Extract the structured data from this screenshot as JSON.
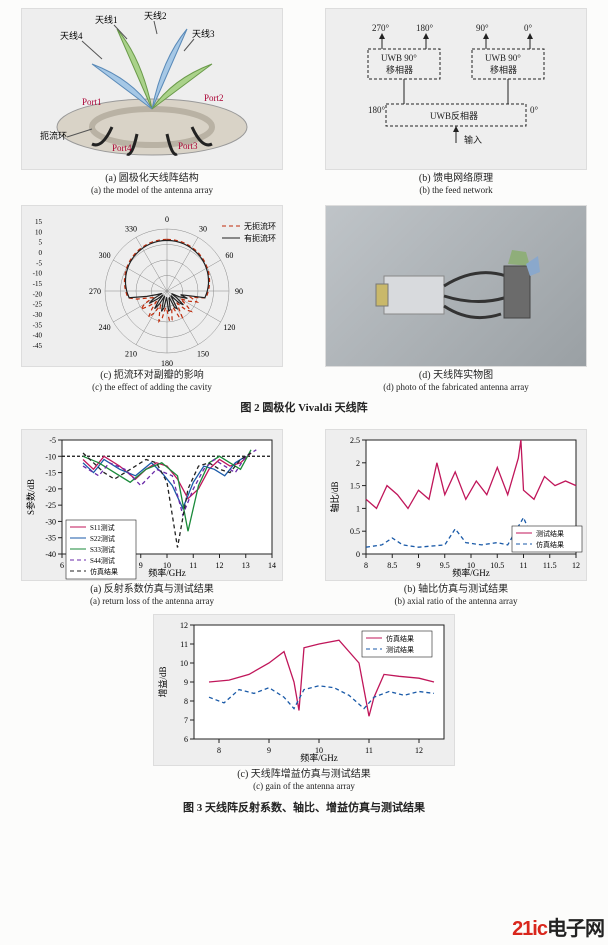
{
  "fig2": {
    "title": "图 2  圆极化 Vivaldi 天线阵",
    "a": {
      "cn": "(a) 圆极化天线阵结构",
      "en": "(a) the model of the antenna array",
      "labels": [
        "天线1",
        "天线2",
        "天线3",
        "天线4",
        "Port1",
        "Port2",
        "Port3",
        "Port4",
        "扼流环"
      ],
      "colors": {
        "vivaldi1": "#aad28a",
        "vivaldi2": "#a6c8e6",
        "base": "#d9d3c7",
        "ring": "#b9b2a4",
        "cable": "#222"
      }
    },
    "b": {
      "cn": "(b) 馈电网络原理",
      "en": "(b) the feed network",
      "angles_top": [
        "270°",
        "180°",
        "90°",
        "0°"
      ],
      "box_top_left": "UWB 90°\n移相器",
      "box_top_right": "UWB 90°\n移相器",
      "box_bottom": "UWB反相器",
      "side_left": "180°",
      "side_right": "0°",
      "input": "输入"
    },
    "c": {
      "cn": "(c) 扼流环对副瓣的影响",
      "en": "(c) the effect of adding the cavity",
      "radial_ticks": [
        15,
        10,
        5,
        0,
        -5,
        -10,
        -15,
        -20,
        -25,
        -30,
        -35,
        -40,
        -45
      ],
      "angle_ticks": [
        0,
        30,
        60,
        90,
        120,
        150,
        180,
        210,
        240,
        270,
        300,
        330
      ],
      "legend": [
        "无扼流环",
        "有扼流环"
      ],
      "line_color_no": "#c02a0a",
      "line_color_yes": "#222",
      "grid_color": "#888"
    },
    "d": {
      "cn": "(d) 天线阵实物图",
      "en": "(d) photo of the fabricated antenna array"
    }
  },
  "fig3": {
    "title": "图 3  天线阵反射系数、轴比、增益仿真与测试结果",
    "a": {
      "cn": "(a) 反射系数仿真与测试结果",
      "en": "(a) return loss of the antenna array",
      "ylabel": "S参数/dB",
      "xlabel": "频率/GHz",
      "xlim": [
        6,
        14
      ],
      "xticks": [
        6,
        7,
        8,
        9,
        10,
        11,
        12,
        13,
        14
      ],
      "ylim": [
        -40,
        -5
      ],
      "yticks": [
        -40,
        -35,
        -30,
        -25,
        -20,
        -15,
        -10,
        -5
      ],
      "legend": [
        "S11测试",
        "S22测试",
        "S33测试",
        "S44测试",
        "仿真结果"
      ],
      "legend_colors": [
        "#c0165a",
        "#1a5aa8",
        "#1a8a3a",
        "#6a2aa8",
        "#222"
      ],
      "series": {
        "S11": [
          [
            6.8,
            -11
          ],
          [
            7.2,
            -14
          ],
          [
            7.6,
            -10
          ],
          [
            8.2,
            -13
          ],
          [
            8.8,
            -17
          ],
          [
            9.2,
            -14
          ],
          [
            9.6,
            -12
          ],
          [
            10.0,
            -13
          ],
          [
            10.4,
            -17
          ],
          [
            10.8,
            -23
          ],
          [
            11.2,
            -20
          ],
          [
            11.6,
            -14
          ],
          [
            12.0,
            -11
          ],
          [
            12.4,
            -13
          ],
          [
            12.8,
            -12
          ],
          [
            13.2,
            -9
          ]
        ],
        "S22": [
          [
            6.8,
            -12
          ],
          [
            7.2,
            -15
          ],
          [
            7.6,
            -11
          ],
          [
            8.2,
            -14
          ],
          [
            8.8,
            -16
          ],
          [
            9.4,
            -12
          ],
          [
            9.8,
            -15
          ],
          [
            10.2,
            -19
          ],
          [
            10.6,
            -26
          ],
          [
            11.0,
            -18
          ],
          [
            11.4,
            -13
          ],
          [
            11.8,
            -14
          ],
          [
            12.2,
            -16
          ],
          [
            12.6,
            -12
          ],
          [
            13.0,
            -10
          ]
        ],
        "S33": [
          [
            6.8,
            -10
          ],
          [
            7.4,
            -12
          ],
          [
            8.0,
            -15
          ],
          [
            8.6,
            -18
          ],
          [
            9.2,
            -14
          ],
          [
            9.8,
            -12
          ],
          [
            10.4,
            -16
          ],
          [
            10.8,
            -33
          ],
          [
            11.2,
            -19
          ],
          [
            11.6,
            -12
          ],
          [
            12.0,
            -10
          ],
          [
            12.4,
            -12
          ],
          [
            12.8,
            -14
          ],
          [
            13.2,
            -8
          ]
        ],
        "S44": [
          [
            6.8,
            -13
          ],
          [
            7.4,
            -16
          ],
          [
            7.8,
            -12
          ],
          [
            8.4,
            -14
          ],
          [
            9.0,
            -19
          ],
          [
            9.6,
            -14
          ],
          [
            10.2,
            -16
          ],
          [
            10.6,
            -28
          ],
          [
            11.0,
            -20
          ],
          [
            11.4,
            -14
          ],
          [
            11.8,
            -11
          ],
          [
            12.2,
            -13
          ],
          [
            12.6,
            -15
          ],
          [
            13.0,
            -10
          ],
          [
            13.4,
            -8
          ]
        ],
        "sim": [
          [
            6.8,
            -9
          ],
          [
            7.2,
            -12
          ],
          [
            7.6,
            -15
          ],
          [
            8.0,
            -17
          ],
          [
            8.8,
            -13
          ],
          [
            9.2,
            -11
          ],
          [
            9.6,
            -12
          ],
          [
            10.0,
            -18
          ],
          [
            10.4,
            -38
          ],
          [
            10.8,
            -20
          ],
          [
            11.2,
            -13
          ],
          [
            11.6,
            -12
          ],
          [
            12.0,
            -14
          ],
          [
            12.4,
            -15
          ],
          [
            12.8,
            -11
          ],
          [
            13.2,
            -9
          ]
        ]
      },
      "ref_line_y": -10
    },
    "b": {
      "cn": "(b) 轴比仿真与测试结果",
      "en": "(b) axial ratio of the antenna array",
      "ylabel": "轴比/dB",
      "xlabel": "频率/GHz",
      "xlim": [
        8,
        12
      ],
      "xticks": [
        8,
        8.5,
        9,
        9.5,
        10,
        10.5,
        11,
        11.5,
        12
      ],
      "ylim": [
        0,
        2.5
      ],
      "yticks": [
        0,
        0.5,
        1,
        1.5,
        2,
        2.5
      ],
      "legend": [
        "测试结果",
        "仿真结果"
      ],
      "legend_colors": [
        "#c0165a",
        "#1a5aa8"
      ],
      "series": {
        "meas": [
          [
            8.0,
            1.2
          ],
          [
            8.2,
            1.0
          ],
          [
            8.4,
            1.5
          ],
          [
            8.6,
            1.3
          ],
          [
            8.8,
            1.0
          ],
          [
            9.0,
            1.4
          ],
          [
            9.2,
            1.2
          ],
          [
            9.35,
            2.0
          ],
          [
            9.5,
            1.3
          ],
          [
            9.7,
            1.8
          ],
          [
            9.9,
            1.2
          ],
          [
            10.1,
            1.6
          ],
          [
            10.3,
            1.3
          ],
          [
            10.5,
            1.9
          ],
          [
            10.7,
            1.3
          ],
          [
            10.9,
            2.1
          ],
          [
            10.95,
            2.5
          ],
          [
            11.0,
            1.4
          ],
          [
            11.2,
            1.2
          ],
          [
            11.4,
            1.7
          ],
          [
            11.6,
            1.5
          ],
          [
            11.8,
            1.6
          ],
          [
            12.0,
            1.5
          ]
        ],
        "sim": [
          [
            8.0,
            0.15
          ],
          [
            8.3,
            0.2
          ],
          [
            8.5,
            0.35
          ],
          [
            8.7,
            0.2
          ],
          [
            9.0,
            0.15
          ],
          [
            9.5,
            0.2
          ],
          [
            9.7,
            0.55
          ],
          [
            9.9,
            0.25
          ],
          [
            10.2,
            0.2
          ],
          [
            10.5,
            0.25
          ],
          [
            10.7,
            0.2
          ],
          [
            11.0,
            0.8
          ],
          [
            11.2,
            0.25
          ],
          [
            11.5,
            0.25
          ],
          [
            11.8,
            0.22
          ],
          [
            12.0,
            0.2
          ]
        ]
      }
    },
    "c": {
      "cn": "(c) 天线阵增益仿真与测试结果",
      "en": "(c) gain of the antenna array",
      "ylabel": "增益/dB",
      "xlabel": "频率/GHz",
      "xlim": [
        7.5,
        12.5
      ],
      "xticks": [
        8,
        9,
        10,
        11,
        12
      ],
      "ylim": [
        6,
        12
      ],
      "yticks": [
        6,
        7,
        8,
        9,
        10,
        11,
        12
      ],
      "legend": [
        "仿真结果",
        "测试结果"
      ],
      "legend_colors": [
        "#c0165a",
        "#1a5aa8"
      ],
      "series": {
        "sim": [
          [
            7.8,
            9.0
          ],
          [
            8.2,
            9.1
          ],
          [
            8.6,
            9.4
          ],
          [
            9.0,
            10.0
          ],
          [
            9.3,
            10.6
          ],
          [
            9.5,
            9.0
          ],
          [
            9.6,
            7.5
          ],
          [
            9.7,
            10.8
          ],
          [
            10.0,
            11.0
          ],
          [
            10.4,
            11.2
          ],
          [
            10.8,
            10.0
          ],
          [
            11.0,
            7.2
          ],
          [
            11.1,
            8.2
          ],
          [
            11.3,
            9.4
          ],
          [
            11.6,
            9.3
          ],
          [
            12.0,
            9.2
          ],
          [
            12.3,
            9.0
          ]
        ],
        "meas": [
          [
            7.8,
            8.2
          ],
          [
            8.1,
            7.9
          ],
          [
            8.4,
            8.6
          ],
          [
            8.7,
            8.4
          ],
          [
            9.0,
            8.7
          ],
          [
            9.3,
            8.2
          ],
          [
            9.5,
            7.6
          ],
          [
            9.7,
            8.6
          ],
          [
            10.0,
            8.8
          ],
          [
            10.3,
            8.7
          ],
          [
            10.6,
            8.3
          ],
          [
            10.9,
            7.6
          ],
          [
            11.1,
            8.2
          ],
          [
            11.4,
            8.5
          ],
          [
            11.7,
            8.3
          ],
          [
            12.0,
            8.5
          ],
          [
            12.3,
            8.4
          ]
        ]
      }
    }
  },
  "watermark": {
    "brand_red": "21ic",
    "brand_black": "电子网"
  }
}
